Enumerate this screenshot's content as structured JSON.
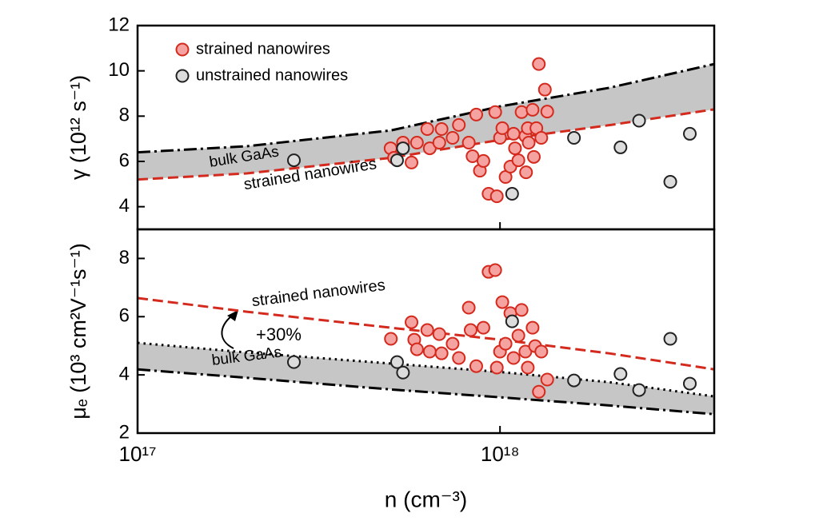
{
  "chart_data": [
    {
      "type": "scatter",
      "ylabel": "γ (10¹² s⁻¹)",
      "xscale": "log",
      "xlim": [
        1e+17,
        3.9e+18
      ],
      "xticks": [
        1e+17,
        1e+18
      ],
      "show_xtick_labels": false,
      "ylim": [
        3,
        12
      ],
      "yticks": [
        4,
        6,
        8,
        10,
        12
      ],
      "legend": "upper left",
      "series": [
        {
          "name": "strained nanowires",
          "kind": "points",
          "color": "#d42a1e",
          "fill": "#f5a3a0",
          "x": [
            4.99e+17,
            5.1e+17,
            5.4e+17,
            5.7e+17,
            5.9e+17,
            6.3e+17,
            6.4e+17,
            6.8e+17,
            6.9e+17,
            7.4e+17,
            7.7e+17,
            8.2e+17,
            8.4e+17,
            8.6e+17,
            8.8e+17,
            9e+17,
            9.3e+17,
            9.7e+17,
            9.8e+17,
            1e+18,
            1.015e+18,
            1.036e+18,
            1.068e+18,
            1.09e+18,
            1.1e+18,
            1.124e+18,
            1.147e+18,
            1.175e+18,
            1.18e+18,
            1.193e+18,
            1.2e+18,
            1.23e+18,
            1.24e+18,
            1.26e+18,
            1.28e+18,
            1.3e+18,
            1.33e+18,
            1.35e+18
          ],
          "values": [
            6.58,
            6.16,
            6.83,
            5.95,
            6.83,
            7.43,
            6.58,
            6.83,
            7.43,
            7.04,
            7.61,
            6.83,
            6.23,
            8.07,
            5.59,
            6.02,
            4.57,
            8.18,
            4.46,
            7.04,
            7.47,
            5.31,
            5.77,
            7.22,
            6.58,
            6.05,
            8.18,
            7.12,
            5.52,
            7.47,
            6.83,
            8.28,
            6.2,
            7.47,
            10.3,
            7.04,
            9.17,
            8.2
          ]
        },
        {
          "name": "unstrained nanowires",
          "kind": "points",
          "color": "#222222",
          "fill": "#dcdcdc",
          "x": [
            2.7e+17,
            5.2e+17,
            5.4e+17,
            1.08e+18,
            1.6e+18,
            2.15e+18,
            2.42e+18,
            2.95e+18,
            3.34e+18
          ],
          "values": [
            6.05,
            6.05,
            6.58,
            4.57,
            7.04,
            6.62,
            7.8,
            5.1,
            7.22
          ]
        },
        {
          "kind": "line",
          "style": "dashdot",
          "color": "#000000",
          "fill_to": 3,
          "x": [
            1e+17,
            2e+17,
            5e+17,
            1e+18,
            2e+18,
            3.9e+18
          ],
          "values": [
            6.4,
            6.67,
            7.37,
            8.43,
            9.25,
            10.3
          ]
        },
        {
          "kind": "line",
          "style": "dashed",
          "color": "#d42a1e",
          "x": [
            1e+17,
            2e+17,
            5e+17,
            1e+18,
            2e+18,
            3.9e+18
          ],
          "values": [
            5.2,
            5.47,
            6.16,
            6.95,
            7.6,
            8.3
          ]
        }
      ],
      "annotations": [
        {
          "text": "bulk GaAs",
          "color": "#000000"
        },
        {
          "text": "strained nanowires",
          "color": "#d42a1e"
        }
      ]
    },
    {
      "type": "scatter",
      "ylabel": "μₑ (10³ cm²V⁻¹s⁻¹)",
      "xlabel": "n (cm⁻³)",
      "xscale": "log",
      "xlim": [
        1e+17,
        3.9e+18
      ],
      "xticks": [
        {
          "value": 1e+17,
          "label": "10¹⁷"
        },
        {
          "value": 1e+18,
          "label": "10¹⁸"
        }
      ],
      "show_xtick_labels": true,
      "ylim": [
        2,
        9
      ],
      "yticks": [
        2,
        4,
        6,
        8
      ],
      "series": [
        {
          "kind": "points",
          "color": "#d42a1e",
          "fill": "#f5a3a0",
          "x": [
            5e+17,
            5.7e+17,
            5.8e+17,
            5.9e+17,
            6.3e+17,
            6.4e+17,
            6.8e+17,
            6.9e+17,
            7.4e+17,
            7.7e+17,
            8.2e+17,
            8.3e+17,
            8.6e+17,
            9e+17,
            9.3e+17,
            9.7e+17,
            9.8e+17,
            1e+18,
            1.015e+18,
            1.036e+18,
            1.068e+18,
            1.09e+18,
            1.124e+18,
            1.147e+18,
            1.175e+18,
            1.193e+18,
            1.23e+18,
            1.25e+18,
            1.28e+18,
            1.3e+18,
            1.35e+18
          ],
          "values": [
            5.24,
            5.81,
            5.21,
            4.88,
            5.54,
            4.8,
            5.4,
            4.74,
            5.07,
            4.58,
            6.31,
            5.54,
            4.3,
            5.62,
            7.54,
            7.6,
            4.25,
            4.8,
            6.5,
            5.07,
            6.12,
            4.58,
            5.35,
            6.23,
            4.8,
            4.25,
            5.62,
            4.99,
            3.42,
            4.8,
            3.84
          ]
        },
        {
          "kind": "points",
          "color": "#222222",
          "fill": "#dcdcdc",
          "x": [
            2.7e+17,
            5.2e+17,
            5.4e+17,
            1.08e+18,
            1.6e+18,
            2.15e+18,
            2.42e+18,
            2.95e+18,
            3.34e+18
          ],
          "values": [
            4.44,
            4.44,
            4.08,
            5.84,
            3.81,
            4.03,
            3.48,
            5.24,
            3.7
          ]
        },
        {
          "kind": "line",
          "style": "dotted",
          "color": "#000000",
          "fill_to": 3,
          "x": [
            1e+17,
            2e+17,
            5e+17,
            1e+18,
            2e+18,
            3.9e+18
          ],
          "values": [
            5.1,
            4.77,
            4.39,
            4.1,
            3.75,
            3.26
          ]
        },
        {
          "kind": "line",
          "style": "dashdot",
          "color": "#000000",
          "x": [
            1e+17,
            2e+17,
            5e+17,
            1e+18,
            2e+18,
            3.9e+18
          ],
          "values": [
            4.19,
            3.9,
            3.5,
            3.23,
            2.95,
            2.65
          ]
        },
        {
          "kind": "line",
          "style": "dashed",
          "color": "#d42a1e",
          "x": [
            1e+17,
            2e+17,
            5e+17,
            1e+18,
            2e+18,
            3.9e+18
          ],
          "values": [
            6.64,
            6.17,
            5.62,
            5.21,
            4.74,
            4.19
          ]
        }
      ],
      "annotations": [
        {
          "text": "strained nanowires",
          "color": "#d42a1e"
        },
        {
          "text": "+30%",
          "color": "#000000"
        },
        {
          "text": "bulk GaAs",
          "color": "#000000"
        }
      ]
    }
  ]
}
